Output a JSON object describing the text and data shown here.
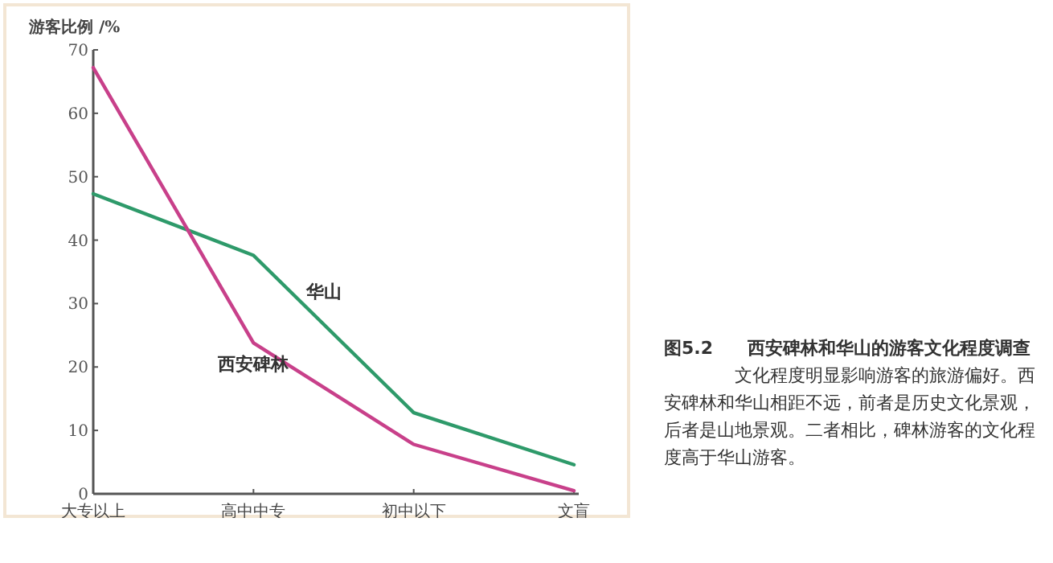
{
  "chart_data": {
    "type": "line",
    "title": "西安碑林和华山的游客文化程度调查",
    "ylabel": "游客比例 /%",
    "categories": [
      "大专以上",
      "高中中专",
      "初中以下",
      "文盲"
    ],
    "series": [
      {
        "name": "华山",
        "color": "#2e9a6a",
        "values": [
          47.3,
          37.6,
          12.8,
          4.6
        ]
      },
      {
        "name": "西安碑林",
        "color": "#c8408a",
        "values": [
          67.2,
          23.8,
          7.8,
          0.5
        ]
      }
    ],
    "ylim": [
      0,
      70
    ],
    "yticks": [
      0,
      10,
      20,
      30,
      40,
      50,
      60,
      70
    ],
    "grid": false,
    "legend": false,
    "marker": "none",
    "line_style": "solid",
    "annotations": [
      "图5.2",
      "文化程度明显影响游客的旅游偏好。西安碑林和华山相距不远，前者是历史文化景观，后者是山地景观。二者相比，碑林游客的文化程度高于华山游客。"
    ]
  }
}
